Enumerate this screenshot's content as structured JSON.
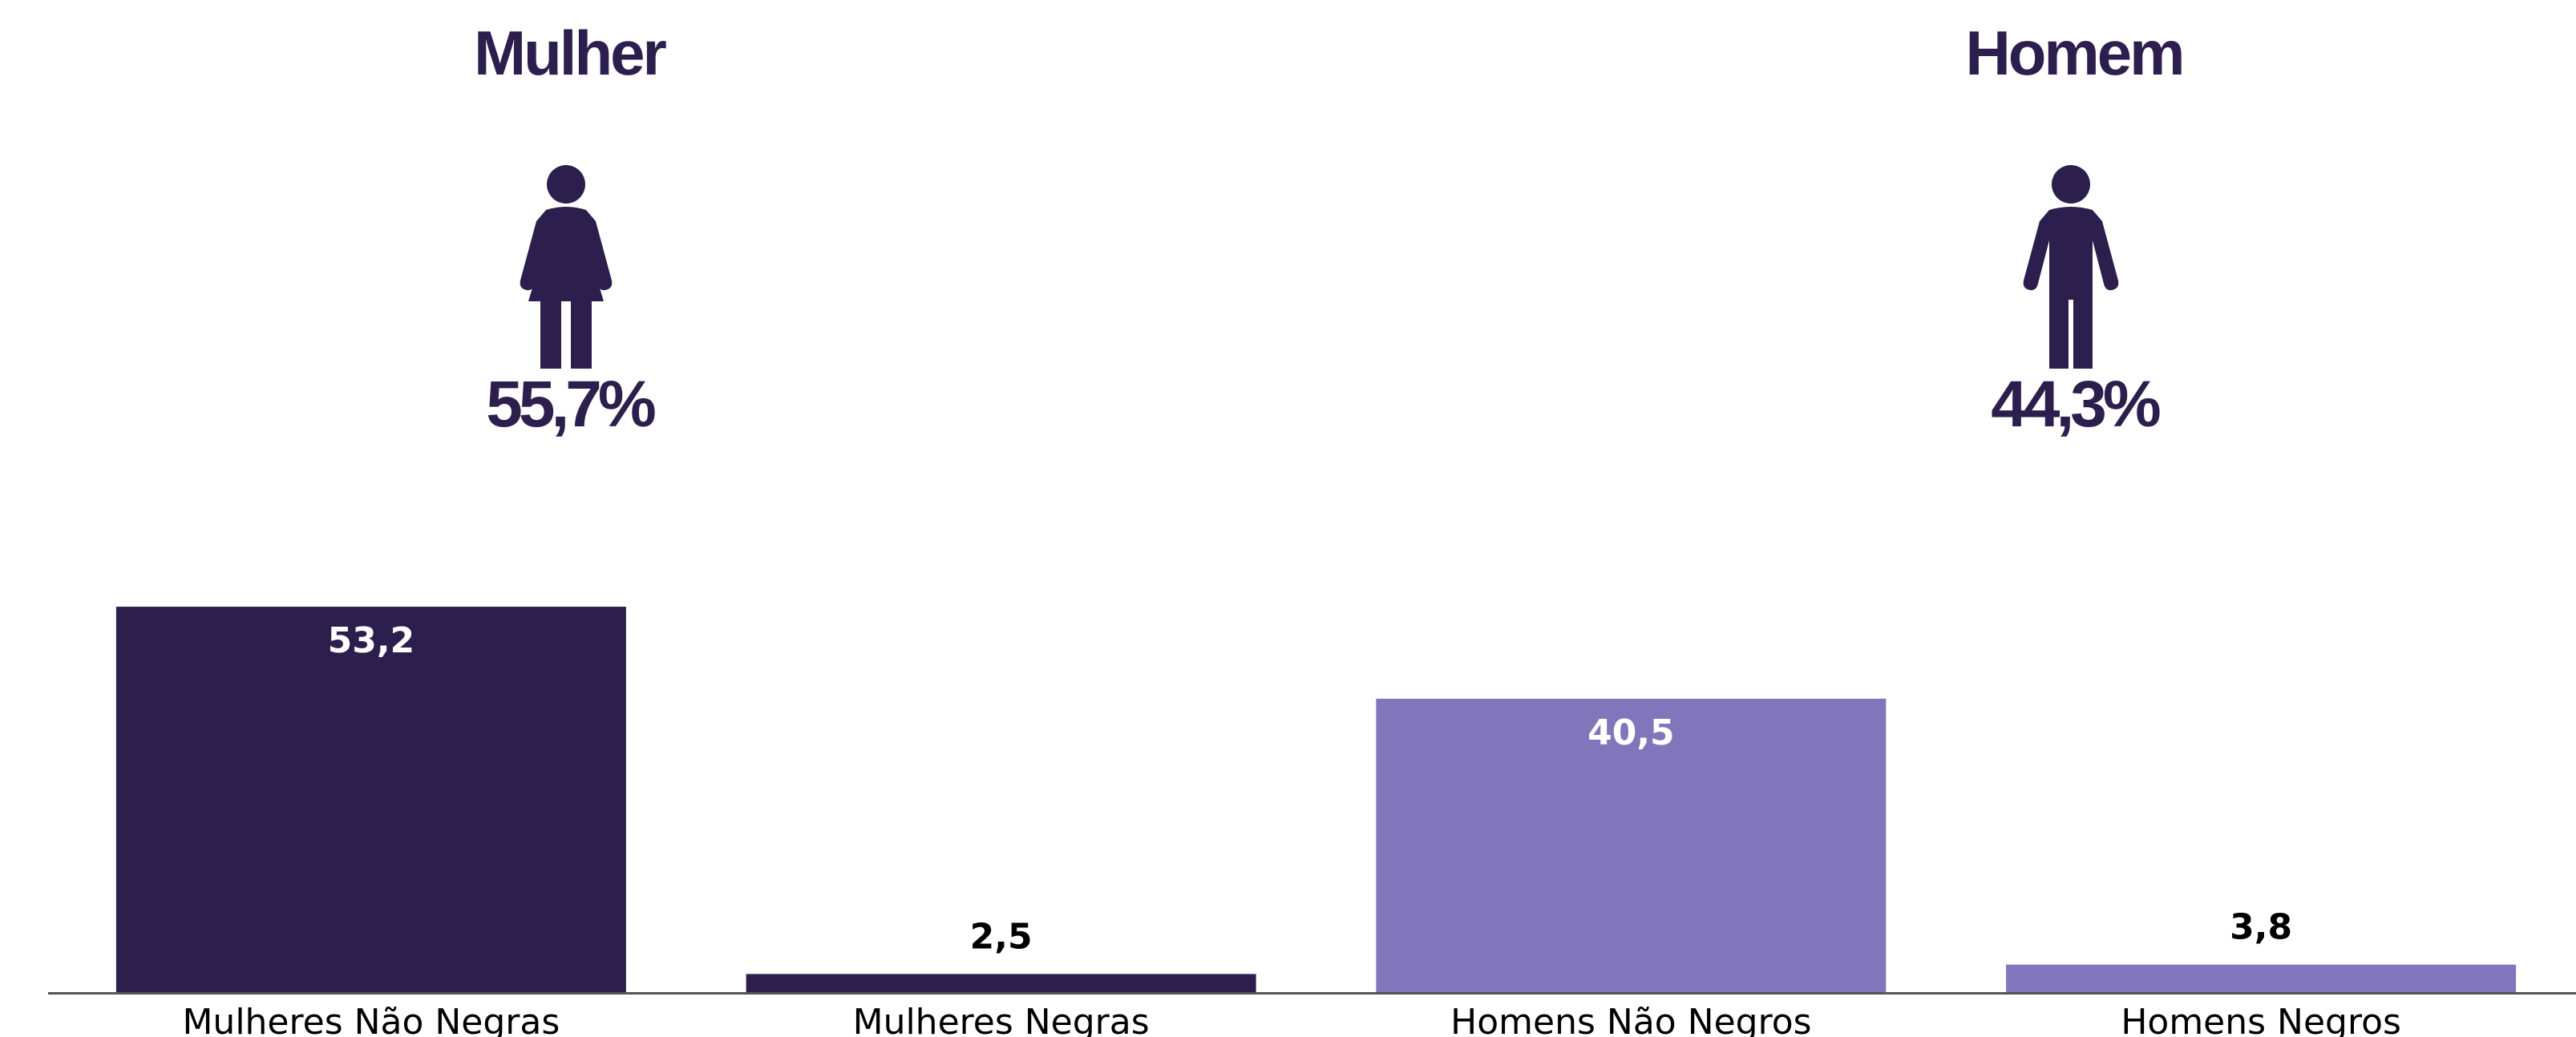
{
  "groups": {
    "left": {
      "title": "Mulher",
      "percent": "55,7%",
      "icon": "woman-icon"
    },
    "right": {
      "title": "Homem",
      "percent": "44,3%",
      "icon": "man-icon"
    }
  },
  "colors": {
    "dark": "#2d1f4d",
    "light": "#8176bc",
    "inside_label": "#ffffff",
    "outside_label": "#000000"
  },
  "chart_data": {
    "type": "bar",
    "categories": [
      "Mulheres Não Negras",
      "Mulheres Negras",
      "Homens Não Negros",
      "Homens Negros"
    ],
    "values": [
      53.2,
      2.5,
      40.5,
      3.8
    ],
    "value_labels": [
      "53,2",
      "2,5",
      "40,5",
      "3,8"
    ],
    "bar_colors": [
      "#2d1f4d",
      "#2d1f4d",
      "#8176bc",
      "#8176bc"
    ],
    "title": "",
    "xlabel": "",
    "ylabel": "",
    "ylim": [
      0,
      60
    ],
    "grid": false,
    "legend": "none"
  }
}
